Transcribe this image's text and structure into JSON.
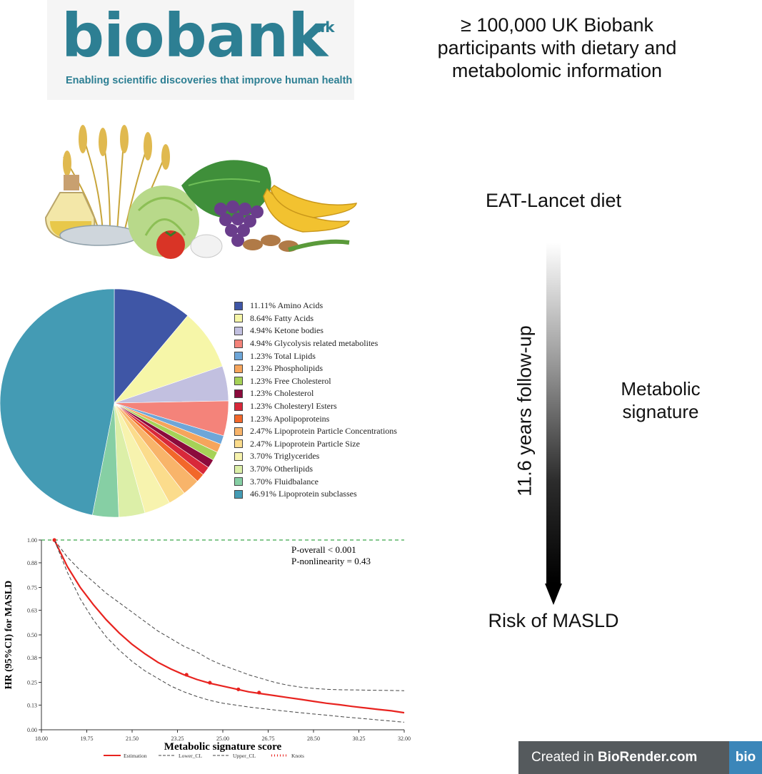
{
  "logo": {
    "wordmark": "biobank",
    "suffix": "uk",
    "tagline": "Enabling scientific discoveries that improve human health"
  },
  "header": {
    "participants_text": "≥ 100,000 UK Biobank participants with dietary and metabolomic information"
  },
  "timeline": {
    "diet_label": "EAT-Lancet diet",
    "followup_label": "11.6 years follow-up",
    "signature_label": "Metabolic signature",
    "outcome_label": "Risk of MASLD"
  },
  "pie": {
    "items": [
      {
        "label": "11.11%  Amino Acids",
        "value": 11.11,
        "color": "#3f56a6"
      },
      {
        "label": "8.64%  Fatty Acids",
        "value": 8.64,
        "color": "#f6f6a8"
      },
      {
        "label": "4.94%  Ketone bodies",
        "value": 4.94,
        "color": "#c2c0e0"
      },
      {
        "label": "4.94%  Glycolysis related metabolites",
        "value": 4.94,
        "color": "#f4837a"
      },
      {
        "label": "1.23%  Total Lipids",
        "value": 1.23,
        "color": "#6ea6d8"
      },
      {
        "label": "1.23%  Phospholipids",
        "value": 1.23,
        "color": "#f6a55c"
      },
      {
        "label": "1.23%  Free Cholesterol",
        "value": 1.23,
        "color": "#a6d257"
      },
      {
        "label": "1.23%  Cholesterol",
        "value": 1.23,
        "color": "#8b0a3c"
      },
      {
        "label": "1.23%  Cholesteryl Esters",
        "value": 1.23,
        "color": "#d8283a"
      },
      {
        "label": "1.23%  Apolipoproteins",
        "value": 1.23,
        "color": "#f2672a"
      },
      {
        "label": "2.47%  Lipoprotein Particle Concentrations",
        "value": 2.47,
        "color": "#f8b46a"
      },
      {
        "label": "2.47%  Lipoprotein Particle Size",
        "value": 2.47,
        "color": "#fbdc8c"
      },
      {
        "label": "3.70%  Triglycerides",
        "value": 3.7,
        "color": "#f7f3ae"
      },
      {
        "label": "3.70%  Otherlipids",
        "value": 3.7,
        "color": "#dcefa8"
      },
      {
        "label": "3.70%  Fluidbalance",
        "value": 3.7,
        "color": "#86cfa4"
      },
      {
        "label": "46.91%  Lipoprotein subclasses",
        "value": 46.91,
        "color": "#449bb4"
      }
    ]
  },
  "chart_data": {
    "type": "line",
    "xlabel": "Metabolic signature score",
    "ylabel": "HR (95%CI) for MASLD",
    "xlim": [
      18.0,
      32.0
    ],
    "ylim": [
      0.0,
      1.0
    ],
    "x_ticks": [
      "18.00",
      "19.75",
      "21.50",
      "23.25",
      "25.00",
      "26.75",
      "28.50",
      "30.25",
      "32.00"
    ],
    "y_ticks": [
      "0.00",
      "0.13",
      "0.25",
      "0.38",
      "0.50",
      "0.63",
      "0.75",
      "0.88",
      "1.00"
    ],
    "annotation_lines": [
      "P-overall < 0.001",
      "P-nonlinearity = 0.43"
    ],
    "reference_line": 1.0,
    "grid": false,
    "legend_position": "bottom",
    "x": [
      18.5,
      19.0,
      19.5,
      20.0,
      20.5,
      21.0,
      21.5,
      22.0,
      22.5,
      23.0,
      23.5,
      24.0,
      24.5,
      25.0,
      25.5,
      26.0,
      26.5,
      27.0,
      27.5,
      28.0,
      28.5,
      29.0,
      29.5,
      30.0,
      30.5,
      31.0,
      31.5,
      32.0
    ],
    "series": [
      {
        "name": "Estimation",
        "color": "#e8231f",
        "values": [
          1.0,
          0.86,
          0.75,
          0.66,
          0.58,
          0.51,
          0.45,
          0.4,
          0.355,
          0.32,
          0.29,
          0.265,
          0.245,
          0.23,
          0.215,
          0.2,
          0.19,
          0.18,
          0.17,
          0.16,
          0.15,
          0.14,
          0.132,
          0.123,
          0.115,
          0.107,
          0.1,
          0.09
        ]
      },
      {
        "name": "Lower_CL",
        "color": "#444444",
        "values": [
          1.0,
          0.83,
          0.69,
          0.58,
          0.49,
          0.42,
          0.36,
          0.31,
          0.27,
          0.23,
          0.2,
          0.175,
          0.155,
          0.14,
          0.13,
          0.12,
          0.112,
          0.104,
          0.097,
          0.09,
          0.083,
          0.077,
          0.07,
          0.064,
          0.058,
          0.052,
          0.046,
          0.04
        ]
      },
      {
        "name": "Upper_CL",
        "color": "#444444",
        "values": [
          1.0,
          0.91,
          0.84,
          0.78,
          0.72,
          0.67,
          0.62,
          0.57,
          0.52,
          0.48,
          0.44,
          0.41,
          0.37,
          0.34,
          0.315,
          0.29,
          0.27,
          0.25,
          0.235,
          0.225,
          0.218,
          0.213,
          0.211,
          0.21,
          0.209,
          0.208,
          0.207,
          0.206
        ]
      }
    ],
    "knots": {
      "name": "Knots",
      "x": [
        18.5,
        23.6,
        24.5,
        25.6,
        26.4
      ],
      "y": [
        1.0,
        0.29,
        0.248,
        0.213,
        0.196
      ]
    }
  },
  "branding": {
    "badge_prefix": "Created in ",
    "badge_brand": "BioRender.com",
    "badge_logo": "bio"
  }
}
